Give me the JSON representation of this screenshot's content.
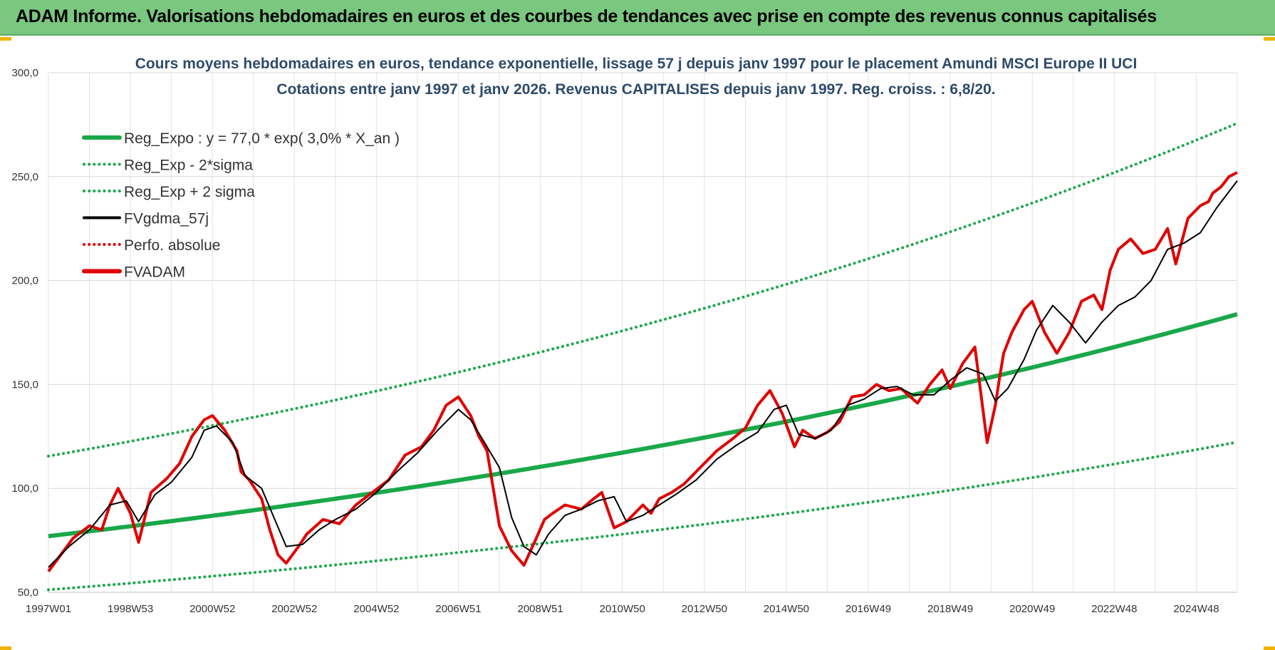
{
  "banner": {
    "title": "ADAM Informe. Valorisations hebdomadaires en euros et des courbes de tendances avec prise en compte des revenus connus capitalisés"
  },
  "chart_data": {
    "type": "line",
    "title_line1": "Cours moyens hebdomadaires en euros, tendance exponentielle, lissage 57 j depuis janv 1997 pour le placement Amundi MSCI Europe II UCI",
    "title_line2": "Cotations entre janv 1997 et janv 2026. Revenus CAPITALISES depuis janv 1997. Reg. croiss. : 6,8/20.",
    "ylim": [
      50,
      300
    ],
    "y_ticks": [
      "50,0",
      "100,0",
      "150,0",
      "200,0",
      "250,0",
      "300,0"
    ],
    "x_range_years": [
      1997.0,
      2026.0
    ],
    "x_ticks": [
      {
        "label": "1997W01",
        "year": 1997.0
      },
      {
        "label": "1998W53",
        "year": 1999.0
      },
      {
        "label": "2000W52",
        "year": 2001.0
      },
      {
        "label": "2002W52",
        "year": 2003.0
      },
      {
        "label": "2004W52",
        "year": 2005.0
      },
      {
        "label": "2006W51",
        "year": 2007.0
      },
      {
        "label": "2008W51",
        "year": 2009.0
      },
      {
        "label": "2010W50",
        "year": 2011.0
      },
      {
        "label": "2012W50",
        "year": 2013.0
      },
      {
        "label": "2014W50",
        "year": 2015.0
      },
      {
        "label": "2016W49",
        "year": 2017.0
      },
      {
        "label": "2018W49",
        "year": 2019.0
      },
      {
        "label": "2020W49",
        "year": 2021.0
      },
      {
        "label": "2022W48",
        "year": 2023.0
      },
      {
        "label": "2024W48",
        "year": 2025.0
      }
    ],
    "grid": true,
    "legend_position": "top-left",
    "regression": {
      "a": 77.0,
      "rate": 0.03,
      "lower_factor": 0.665,
      "upper_factor": 1.5
    },
    "legend": [
      {
        "label": "Reg_Expo : y = 77,0 * exp( 3,0% *  X_an )",
        "color": "#1aa84a",
        "style": "solid-thick"
      },
      {
        "label": "Reg_Exp - 2*sigma",
        "color": "#1aa84a",
        "style": "dotted"
      },
      {
        "label": "Reg_Exp + 2 sigma",
        "color": "#1aa84a",
        "style": "dotted"
      },
      {
        "label": "FVgdma_57j",
        "color": "#000000",
        "style": "solid"
      },
      {
        "label": "Perfo. absolue",
        "color": "#e00000",
        "style": "dotted"
      },
      {
        "label": "FVADAM",
        "color": "#e00000",
        "style": "solid-thick"
      }
    ],
    "fvadam": {
      "x": [
        1997.0,
        1997.3,
        1997.6,
        1998.0,
        1998.3,
        1998.5,
        1998.7,
        1998.8,
        1999.0,
        1999.2,
        1999.5,
        1999.9,
        2000.2,
        2000.5,
        2000.8,
        2001.0,
        2001.3,
        2001.6,
        2001.7,
        2001.9,
        2002.2,
        2002.4,
        2002.6,
        2002.8,
        2003.1,
        2003.3,
        2003.7,
        2004.1,
        2004.5,
        2004.9,
        2005.3,
        2005.7,
        2006.1,
        2006.4,
        2006.7,
        2007.0,
        2007.3,
        2007.5,
        2007.7,
        2008.0,
        2008.3,
        2008.6,
        2008.9,
        2009.1,
        2009.3,
        2009.6,
        2010.0,
        2010.3,
        2010.5,
        2010.8,
        2011.1,
        2011.5,
        2011.7,
        2011.9,
        2012.2,
        2012.5,
        2012.9,
        2013.3,
        2013.7,
        2014.0,
        2014.3,
        2014.6,
        2014.9,
        2015.2,
        2015.4,
        2015.7,
        2016.0,
        2016.3,
        2016.6,
        2016.9,
        2017.2,
        2017.5,
        2017.8,
        2018.2,
        2018.5,
        2018.8,
        2019.0,
        2019.3,
        2019.6,
        2019.9,
        2020.1,
        2020.2,
        2020.3,
        2020.5,
        2020.8,
        2021.0,
        2021.3,
        2021.6,
        2021.9,
        2022.2,
        2022.5,
        2022.7,
        2022.9,
        2023.1,
        2023.4,
        2023.7,
        2024.0,
        2024.3,
        2024.5,
        2024.8,
        2025.1,
        2025.3,
        2025.4,
        2025.6,
        2025.8,
        2026.0
      ],
      "y": [
        60,
        68,
        76,
        82,
        80,
        92,
        100,
        96,
        88,
        74,
        98,
        105,
        112,
        125,
        133,
        135,
        128,
        118,
        108,
        104,
        95,
        80,
        68,
        64,
        72,
        78,
        85,
        83,
        92,
        98,
        104,
        116,
        120,
        128,
        140,
        144,
        135,
        125,
        118,
        82,
        70,
        63,
        76,
        85,
        88,
        92,
        90,
        95,
        98,
        81,
        84,
        92,
        88,
        95,
        98,
        102,
        110,
        118,
        124,
        129,
        140,
        147,
        136,
        120,
        128,
        124,
        127,
        132,
        144,
        145,
        150,
        147,
        148,
        141,
        150,
        157,
        148,
        160,
        168,
        122,
        140,
        153,
        165,
        175,
        186,
        190,
        175,
        165,
        175,
        190,
        193,
        186,
        205,
        215,
        220,
        213,
        215,
        225,
        208,
        230,
        236,
        238,
        242,
        245,
        250,
        252
      ]
    },
    "fvgdma": {
      "x": [
        1997.0,
        1997.5,
        1998.0,
        1998.5,
        1998.9,
        1999.2,
        1999.6,
        2000.0,
        2000.5,
        2000.8,
        2001.1,
        2001.5,
        2001.8,
        2002.2,
        2002.5,
        2002.8,
        2003.2,
        2003.6,
        2004.0,
        2004.5,
        2005.0,
        2005.5,
        2006.0,
        2006.5,
        2007.0,
        2007.3,
        2007.7,
        2008.0,
        2008.3,
        2008.6,
        2008.9,
        2009.2,
        2009.6,
        2010.0,
        2010.4,
        2010.8,
        2011.1,
        2011.5,
        2011.9,
        2012.3,
        2012.8,
        2013.3,
        2013.8,
        2014.3,
        2014.7,
        2015.0,
        2015.3,
        2015.7,
        2016.1,
        2016.5,
        2016.9,
        2017.3,
        2017.7,
        2018.1,
        2018.6,
        2019.0,
        2019.4,
        2019.8,
        2020.1,
        2020.4,
        2020.8,
        2021.1,
        2021.5,
        2021.9,
        2022.3,
        2022.7,
        2023.1,
        2023.5,
        2023.9,
        2024.3,
        2024.7,
        2025.1,
        2025.5,
        2026.0
      ],
      "y": [
        62,
        72,
        80,
        92,
        94,
        84,
        97,
        103,
        115,
        128,
        130,
        122,
        106,
        100,
        86,
        72,
        73,
        80,
        85,
        90,
        98,
        108,
        117,
        128,
        138,
        133,
        120,
        110,
        86,
        72,
        68,
        78,
        87,
        90,
        94,
        96,
        84,
        87,
        92,
        97,
        104,
        114,
        121,
        127,
        138,
        140,
        126,
        124,
        128,
        140,
        143,
        148,
        149,
        145,
        145,
        152,
        158,
        155,
        142,
        148,
        162,
        176,
        188,
        180,
        170,
        180,
        188,
        192,
        200,
        215,
        218,
        223,
        235,
        248
      ]
    }
  }
}
